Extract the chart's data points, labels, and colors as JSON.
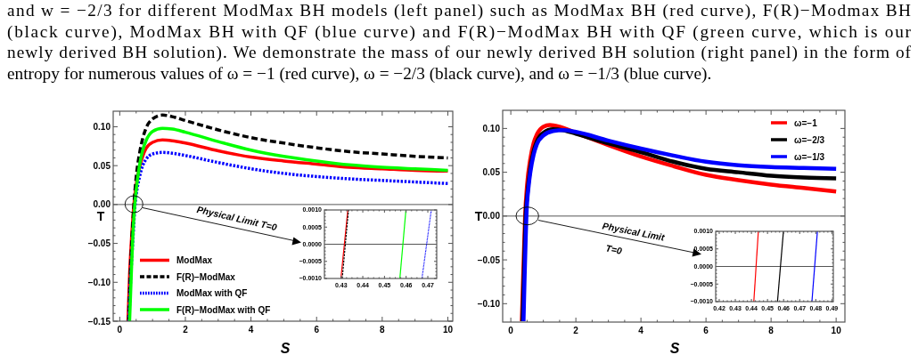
{
  "chart_data": [
    {
      "type": "other",
      "annotations": [
        "and w = −2/3 for different ModMax BH models (left panel) such as ModMax BH (red curve), F(R)−Modmax BH",
        "(black curve), ModMax BH with QF (blue curve) and F(R)−ModMax BH with QF (green curve, which is our",
        "newly derived BH solution). We demonstrate the mass of our newly derived BH solution (right panel) in the form of",
        "entropy for numerous values of ω = −1 (red curve), ω = −2/3 (black curve), and ω = −1/3 (blue curve)."
      ]
    },
    {
      "type": "line",
      "xlabel": "S",
      "ylabel": "T",
      "xlim": [
        -0.2,
        10.15
      ],
      "ylim": [
        -0.15,
        0.12
      ],
      "xticks": [
        0,
        2,
        4,
        6,
        8,
        10
      ],
      "yticks": [
        {
          "value": -0.15,
          "label": "−0.15"
        },
        {
          "value": -0.1,
          "label": "−0.10"
        },
        {
          "value": -0.05,
          "label": "−0.05"
        },
        {
          "value": 0,
          "label": "0.00"
        },
        {
          "value": 0.05,
          "label": "0.05"
        },
        {
          "value": 0.1,
          "label": "0.10"
        }
      ],
      "legend": "bottom left",
      "ref_lines": [
        {
          "axis": "y",
          "value": 0,
          "color": "#555555"
        }
      ],
      "annotations": [
        "Physical Limit T=0"
      ],
      "series": [
        {
          "name": "ModMax",
          "color": "#ff0000",
          "line_style": "solid",
          "x": [
            0.25,
            0.3,
            0.35,
            0.4315,
            0.5,
            0.6,
            0.7,
            0.8,
            1.0,
            1.3,
            1.6,
            2,
            3,
            4,
            5,
            6,
            7,
            8,
            9,
            10
          ],
          "values": [
            -0.15,
            -0.09,
            -0.05,
            0,
            0.025,
            0.047,
            0.062,
            0.072,
            0.08,
            0.083,
            0.082,
            0.079,
            0.069,
            0.061,
            0.056,
            0.052,
            0.048,
            0.046,
            0.044,
            0.043
          ]
        },
        {
          "name": "F(R)−ModMax",
          "color": "#000000",
          "line_style": "dashed",
          "x": [
            0.27,
            0.32,
            0.37,
            0.432,
            0.5,
            0.6,
            0.7,
            0.8,
            1.0,
            1.3,
            1.6,
            2,
            3,
            4,
            5,
            6,
            7,
            8,
            9,
            10
          ],
          "values": [
            -0.15,
            -0.09,
            -0.045,
            0,
            0.035,
            0.065,
            0.085,
            0.098,
            0.11,
            0.115,
            0.113,
            0.108,
            0.096,
            0.086,
            0.079,
            0.073,
            0.068,
            0.065,
            0.062,
            0.06
          ]
        },
        {
          "name": "ModMax with QF",
          "color": "#0000ff",
          "line_style": "dotted",
          "x": [
            0.28,
            0.34,
            0.4,
            0.468,
            0.5,
            0.6,
            0.7,
            0.8,
            1.0,
            1.3,
            1.6,
            2,
            3,
            4,
            5,
            6,
            7,
            8,
            9,
            10
          ],
          "values": [
            -0.15,
            -0.09,
            -0.045,
            0,
            0.012,
            0.035,
            0.05,
            0.058,
            0.065,
            0.067,
            0.066,
            0.063,
            0.054,
            0.046,
            0.04,
            0.036,
            0.033,
            0.031,
            0.029,
            0.027
          ]
        },
        {
          "name": "F(R)−ModMax with QF",
          "color": "#00ff00",
          "line_style": "solid",
          "x": [
            0.3,
            0.36,
            0.4,
            0.4585,
            0.5,
            0.6,
            0.7,
            0.8,
            1.0,
            1.3,
            1.6,
            2,
            3,
            4,
            5,
            6,
            7,
            8,
            9,
            10
          ],
          "values": [
            -0.15,
            -0.08,
            -0.04,
            0,
            0.018,
            0.05,
            0.07,
            0.082,
            0.094,
            0.098,
            0.097,
            0.093,
            0.081,
            0.07,
            0.062,
            0.056,
            0.051,
            0.048,
            0.046,
            0.044
          ]
        }
      ]
    },
    {
      "type": "line",
      "xlim": [
        0.4223,
        0.4741
      ],
      "ylim": [
        -0.001,
        0.001
      ],
      "xticks": [
        0.43,
        0.44,
        0.45,
        0.46,
        0.47
      ],
      "yticks": [
        {
          "value": -0.001,
          "label": "−0.0010"
        },
        {
          "value": -0.0005,
          "label": "−0.0005"
        },
        {
          "value": 0,
          "label": "0.0000"
        },
        {
          "value": 0.0005,
          "label": "0.0005"
        },
        {
          "value": 0.001,
          "label": "0.0010"
        }
      ],
      "ref_lines": [
        {
          "axis": "y",
          "value": 0,
          "color": "#555555"
        }
      ],
      "series": [
        {
          "color": "#ff0000",
          "line_style": "solid",
          "x": [
            0.4299,
            0.4331
          ],
          "values": [
            -0.001,
            0.001
          ]
        },
        {
          "color": "#000000",
          "line_style": "dashed",
          "x": [
            0.4305,
            0.4334
          ],
          "values": [
            -0.001,
            0.001
          ]
        },
        {
          "color": "#00ff00",
          "line_style": "solid",
          "x": [
            0.4571,
            0.4599
          ],
          "values": [
            -0.001,
            0.001
          ]
        },
        {
          "color": "#0000ff",
          "line_style": "dotted",
          "x": [
            0.4673,
            0.4716
          ],
          "values": [
            -0.001,
            0.001
          ]
        }
      ]
    },
    {
      "type": "line",
      "xlabel": "S",
      "ylabel": "T",
      "xlim": [
        -0.25,
        10.27
      ],
      "ylim": [
        -0.121,
        0.1207
      ],
      "xticks": [
        0,
        2,
        4,
        6,
        8,
        10
      ],
      "yticks": [
        {
          "value": -0.1,
          "label": "−0.10"
        },
        {
          "value": -0.05,
          "label": "−0.05"
        },
        {
          "value": 0,
          "label": "0.00"
        },
        {
          "value": 0.05,
          "label": "0.05"
        },
        {
          "value": 0.1,
          "label": "0.10"
        }
      ],
      "legend": "top right",
      "ref_lines": [
        {
          "axis": "y",
          "value": 0,
          "color": "#555555"
        }
      ],
      "annotations": [
        "Physical Limit",
        "T=0"
      ],
      "series": [
        {
          "name": "ω=−1",
          "color": "#ff0000",
          "line_style": "solid",
          "x": [
            0.34,
            0.38,
            0.41,
            0.4405,
            0.5,
            0.6,
            0.7,
            0.8,
            1.0,
            1.2,
            1.5,
            2,
            3,
            4,
            5,
            6,
            7,
            8,
            9,
            10
          ],
          "values": [
            -0.12,
            -0.07,
            -0.035,
            0,
            0.035,
            0.065,
            0.083,
            0.093,
            0.102,
            0.104,
            0.102,
            0.095,
            0.081,
            0.068,
            0.057,
            0.047,
            0.041,
            0.036,
            0.032,
            0.028
          ]
        },
        {
          "name": "ω=−2/3",
          "color": "#000000",
          "line_style": "solid",
          "x": [
            0.36,
            0.4,
            0.43,
            0.4555,
            0.5,
            0.6,
            0.7,
            0.8,
            1.0,
            1.3,
            1.6,
            2,
            3,
            4,
            5,
            6,
            7,
            8,
            9,
            10
          ],
          "values": [
            -0.12,
            -0.07,
            -0.03,
            0,
            0.022,
            0.055,
            0.074,
            0.085,
            0.095,
            0.099,
            0.098,
            0.094,
            0.083,
            0.073,
            0.062,
            0.054,
            0.05,
            0.046,
            0.044,
            0.043
          ]
        },
        {
          "name": "ω=−1/3",
          "color": "#0000ff",
          "line_style": "solid",
          "x": [
            0.39,
            0.42,
            0.45,
            0.4785,
            0.55,
            0.6,
            0.7,
            0.8,
            1.0,
            1.3,
            1.6,
            2,
            3,
            4,
            5,
            6,
            7,
            8,
            9,
            10
          ],
          "values": [
            -0.12,
            -0.075,
            -0.035,
            0,
            0.035,
            0.05,
            0.07,
            0.082,
            0.092,
            0.097,
            0.098,
            0.096,
            0.086,
            0.077,
            0.069,
            0.062,
            0.058,
            0.056,
            0.055,
            0.054
          ]
        }
      ]
    },
    {
      "type": "line",
      "xlim": [
        0.4178,
        0.4909
      ],
      "ylim": [
        -0.001,
        0.001
      ],
      "xticks": [
        0.42,
        0.43,
        0.44,
        0.45,
        0.46,
        0.47,
        0.48,
        0.49
      ],
      "yticks": [
        {
          "value": -0.001,
          "label": "−0.0010"
        },
        {
          "value": -0.0005,
          "label": "−0.0005"
        },
        {
          "value": 0,
          "label": "0.0000"
        },
        {
          "value": 0.0005,
          "label": "0.0005"
        },
        {
          "value": 0.001,
          "label": "0.0010"
        }
      ],
      "ref_lines": [
        {
          "axis": "y",
          "value": 0,
          "color": "#555555"
        }
      ],
      "series": [
        {
          "color": "#ff0000",
          "line_style": "solid",
          "x": [
            0.4415,
            0.4443
          ],
          "values": [
            -0.001,
            0.001
          ]
        },
        {
          "color": "#000000",
          "line_style": "solid",
          "x": [
            0.4562,
            0.4599
          ],
          "values": [
            -0.001,
            0.001
          ]
        },
        {
          "color": "#0000ff",
          "line_style": "solid",
          "x": [
            0.4776,
            0.481
          ],
          "values": [
            -0.001,
            0.001
          ]
        }
      ]
    }
  ]
}
